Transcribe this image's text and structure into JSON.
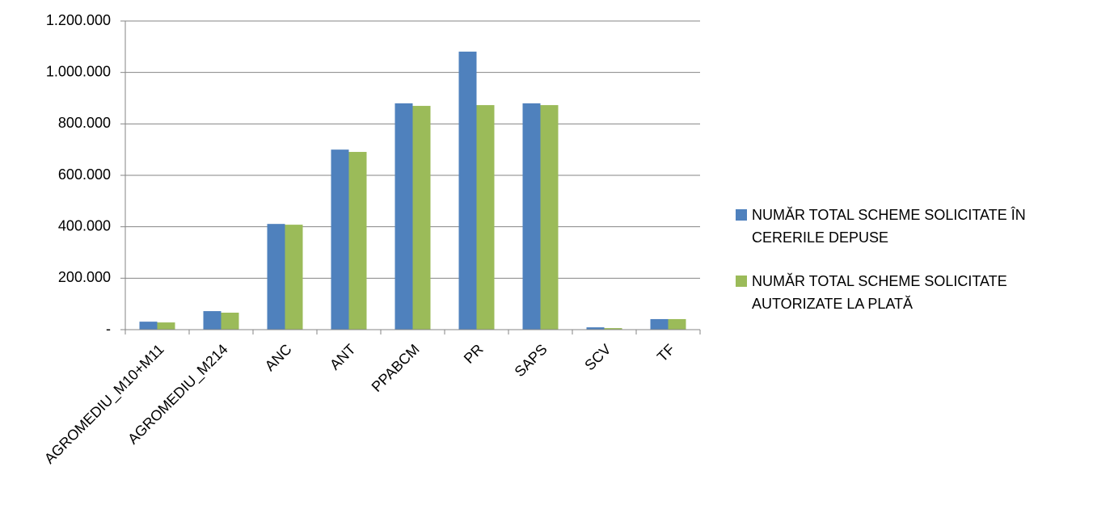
{
  "chart_data": {
    "type": "bar",
    "categories": [
      "AGROMEDIU_M10+M11",
      "AGROMEDIU_M214",
      "ANC",
      "ANT",
      "PPABCM",
      "PR",
      "SAPS",
      "SCV",
      "TF"
    ],
    "series": [
      {
        "name": "NUMĂR TOTAL SCHEME SOLICITATE ÎN CERERILE DEPUSE",
        "color": "#4f81bd",
        "values": [
          31000,
          72000,
          411000,
          700000,
          880000,
          1081000,
          880000,
          9000,
          41000
        ]
      },
      {
        "name": "NUMĂR TOTAL SCHEME SOLICITATE AUTORIZATE LA PLATĂ",
        "color": "#9bbb59",
        "values": [
          28000,
          66000,
          408000,
          691000,
          870000,
          873000,
          873000,
          6000,
          41000
        ]
      }
    ],
    "ylim": [
      0,
      1200000
    ],
    "yticks": [
      {
        "value": 0,
        "label": "-"
      },
      {
        "value": 200000,
        "label": "200.000"
      },
      {
        "value": 400000,
        "label": "400.000"
      },
      {
        "value": 600000,
        "label": "600.000"
      },
      {
        "value": 800000,
        "label": "800.000"
      },
      {
        "value": 1000000,
        "label": "1.000.000"
      },
      {
        "value": 1200000,
        "label": "1.200.000"
      }
    ],
    "grid": true,
    "legend": "right"
  }
}
